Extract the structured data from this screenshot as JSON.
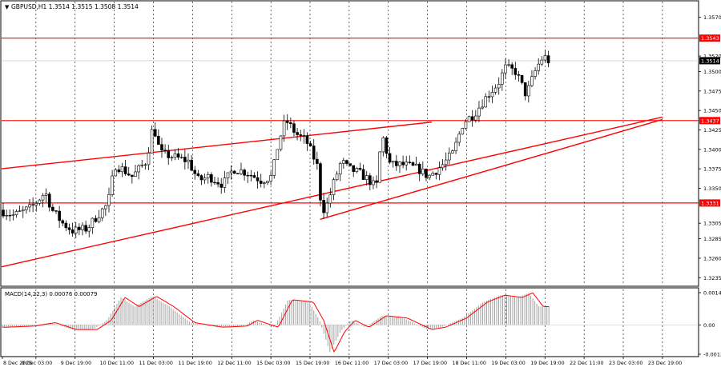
{
  "header": {
    "symbol_line": "GBPUSD,H1  1.3514 1.3515 1.3508 1.3514",
    "macd_line": "MACD(14,22,3) 0.00076 0.00079"
  },
  "colors": {
    "background": "#ffffff",
    "candles": "#000000",
    "grid": "#000000",
    "level_lines": "#ff0000",
    "trend_lines": "#ff0000",
    "macd_histogram": "#a0a0a0",
    "signal_line": "#ff0000",
    "price_label_bg": "#ff0000",
    "current_label_bg": "#000000"
  },
  "chart_data": {
    "type": "candlestick",
    "symbol": "GBPUSD",
    "timeframe": "H1",
    "ylim": [
      1.3225,
      1.359
    ],
    "y_ticks": [
      "1.3570",
      "1.3520",
      "1.3500",
      "1.3475",
      "1.3450",
      "1.3425",
      "1.3400",
      "1.3375",
      "1.3350",
      "1.3305",
      "1.3285",
      "1.3260",
      "1.3235"
    ],
    "x_ticks": [
      "8 Dec 2025",
      "9 Dec 03:00",
      "9 Dec 19:00",
      "10 Dec 11:00",
      "11 Dec 03:00",
      "11 Dec 19:00",
      "12 Dec 11:00",
      "15 Dec 03:00",
      "15 Dec 19:00",
      "16 Dec 11:00",
      "17 Dec 03:00",
      "17 Dec 19:00",
      "18 Dec 11:00",
      "19 Dec 03:00",
      "19 Dec 19:00",
      "22 Dec 11:00",
      "23 Dec 03:00",
      "23 Dec 19:00"
    ],
    "horizontal_levels": [
      {
        "value": 1.3543,
        "label": "1.3543"
      },
      {
        "value": 1.3437,
        "label": "1.3437"
      },
      {
        "value": 1.3331,
        "label": "1.3331"
      }
    ],
    "current_price": {
      "value": 1.3514,
      "label": "1.3514"
    },
    "trend_lines": [
      {
        "points": [
          [
            0,
            1.3249
          ],
          [
            1,
            1.3452
          ]
        ]
      },
      {
        "points": [
          [
            0.457,
            1.331
          ],
          [
            1,
            1.3452
          ]
        ]
      },
      {
        "points": [
          [
            0,
            1.3375
          ],
          [
            0.617,
            1.3435
          ]
        ]
      }
    ],
    "anchors": [
      [
        0,
        1.3322
      ],
      [
        0.02,
        1.3315
      ],
      [
        0.045,
        1.3325
      ],
      [
        0.065,
        1.3345
      ],
      [
        0.075,
        1.3322
      ],
      [
        0.09,
        1.3305
      ],
      [
        0.105,
        1.3295
      ],
      [
        0.125,
        1.3298
      ],
      [
        0.14,
        1.3315
      ],
      [
        0.155,
        1.333
      ],
      [
        0.165,
        1.338
      ],
      [
        0.175,
        1.3375
      ],
      [
        0.19,
        1.3365
      ],
      [
        0.21,
        1.3385
      ],
      [
        0.22,
        1.3432
      ],
      [
        0.23,
        1.3395
      ],
      [
        0.25,
        1.339
      ],
      [
        0.27,
        1.3385
      ],
      [
        0.285,
        1.336
      ],
      [
        0.3,
        1.3365
      ],
      [
        0.32,
        1.3355
      ],
      [
        0.335,
        1.3375
      ],
      [
        0.355,
        1.337
      ],
      [
        0.375,
        1.336
      ],
      [
        0.39,
        1.3365
      ],
      [
        0.4,
        1.341
      ],
      [
        0.41,
        1.3438
      ],
      [
        0.425,
        1.342
      ],
      [
        0.44,
        1.341
      ],
      [
        0.455,
        1.338
      ],
      [
        0.462,
        1.332
      ],
      [
        0.47,
        1.333
      ],
      [
        0.48,
        1.336
      ],
      [
        0.49,
        1.3385
      ],
      [
        0.5,
        1.3375
      ],
      [
        0.515,
        1.337
      ],
      [
        0.53,
        1.336
      ],
      [
        0.54,
        1.335
      ],
      [
        0.548,
        1.342
      ],
      [
        0.56,
        1.338
      ],
      [
        0.58,
        1.338
      ],
      [
        0.6,
        1.3375
      ],
      [
        0.615,
        1.3365
      ],
      [
        0.635,
        1.338
      ],
      [
        0.65,
        1.3395
      ],
      [
        0.665,
        1.3435
      ],
      [
        0.68,
        1.3445
      ],
      [
        0.7,
        1.347
      ],
      [
        0.715,
        1.3485
      ],
      [
        0.725,
        1.3505
      ],
      [
        0.74,
        1.35
      ],
      [
        0.755,
        1.347
      ],
      [
        0.77,
        1.3505
      ],
      [
        0.78,
        1.352
      ],
      [
        0.787,
        1.3514
      ]
    ],
    "macd": {
      "title": "MACD(14,22,3)",
      "ylim": [
        -0.00135,
        0.00155
      ],
      "y_ticks": [
        "0.00141",
        "0.00",
        "-0.00128"
      ],
      "anchors": [
        [
          0,
          -0.0001
        ],
        [
          0.04,
          -5e-05
        ],
        [
          0.07,
          0.0001
        ],
        [
          0.1,
          -0.0002
        ],
        [
          0.13,
          -0.0002
        ],
        [
          0.15,
          0.0002
        ],
        [
          0.17,
          0.0012
        ],
        [
          0.19,
          0.0008
        ],
        [
          0.215,
          0.00125
        ],
        [
          0.24,
          0.0008
        ],
        [
          0.27,
          0.0001
        ],
        [
          0.31,
          -0.0001
        ],
        [
          0.345,
          -5e-05
        ],
        [
          0.36,
          0.0002
        ],
        [
          0.39,
          -0.0001
        ],
        [
          0.41,
          0.0011
        ],
        [
          0.44,
          0.001
        ],
        [
          0.455,
          0.0002
        ],
        [
          0.47,
          -0.0012
        ],
        [
          0.485,
          -0.0003
        ],
        [
          0.5,
          0.0002
        ],
        [
          0.52,
          -0.0001
        ],
        [
          0.545,
          0.0004
        ],
        [
          0.575,
          0.0003
        ],
        [
          0.61,
          -0.0002
        ],
        [
          0.63,
          -0.0001
        ],
        [
          0.66,
          0.0003
        ],
        [
          0.69,
          0.001
        ],
        [
          0.715,
          0.0013
        ],
        [
          0.74,
          0.0012
        ],
        [
          0.755,
          0.0014
        ],
        [
          0.77,
          0.0008
        ],
        [
          0.787,
          0.0008
        ]
      ]
    }
  }
}
